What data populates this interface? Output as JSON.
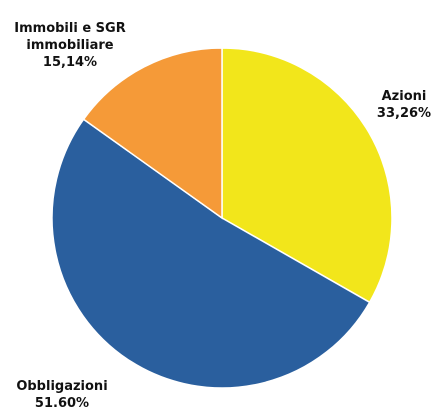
{
  "chart_data": {
    "type": "pie",
    "categories": [
      "Azioni",
      "Obbligazioni",
      "Immobili e SGR immobiliare"
    ],
    "values": [
      33.26,
      51.6,
      15.14
    ],
    "value_labels": [
      "33,26%",
      "51.60%",
      "15,14%"
    ],
    "colors": [
      "#f2e61b",
      "#2a5f9e",
      "#f59a38"
    ]
  }
}
